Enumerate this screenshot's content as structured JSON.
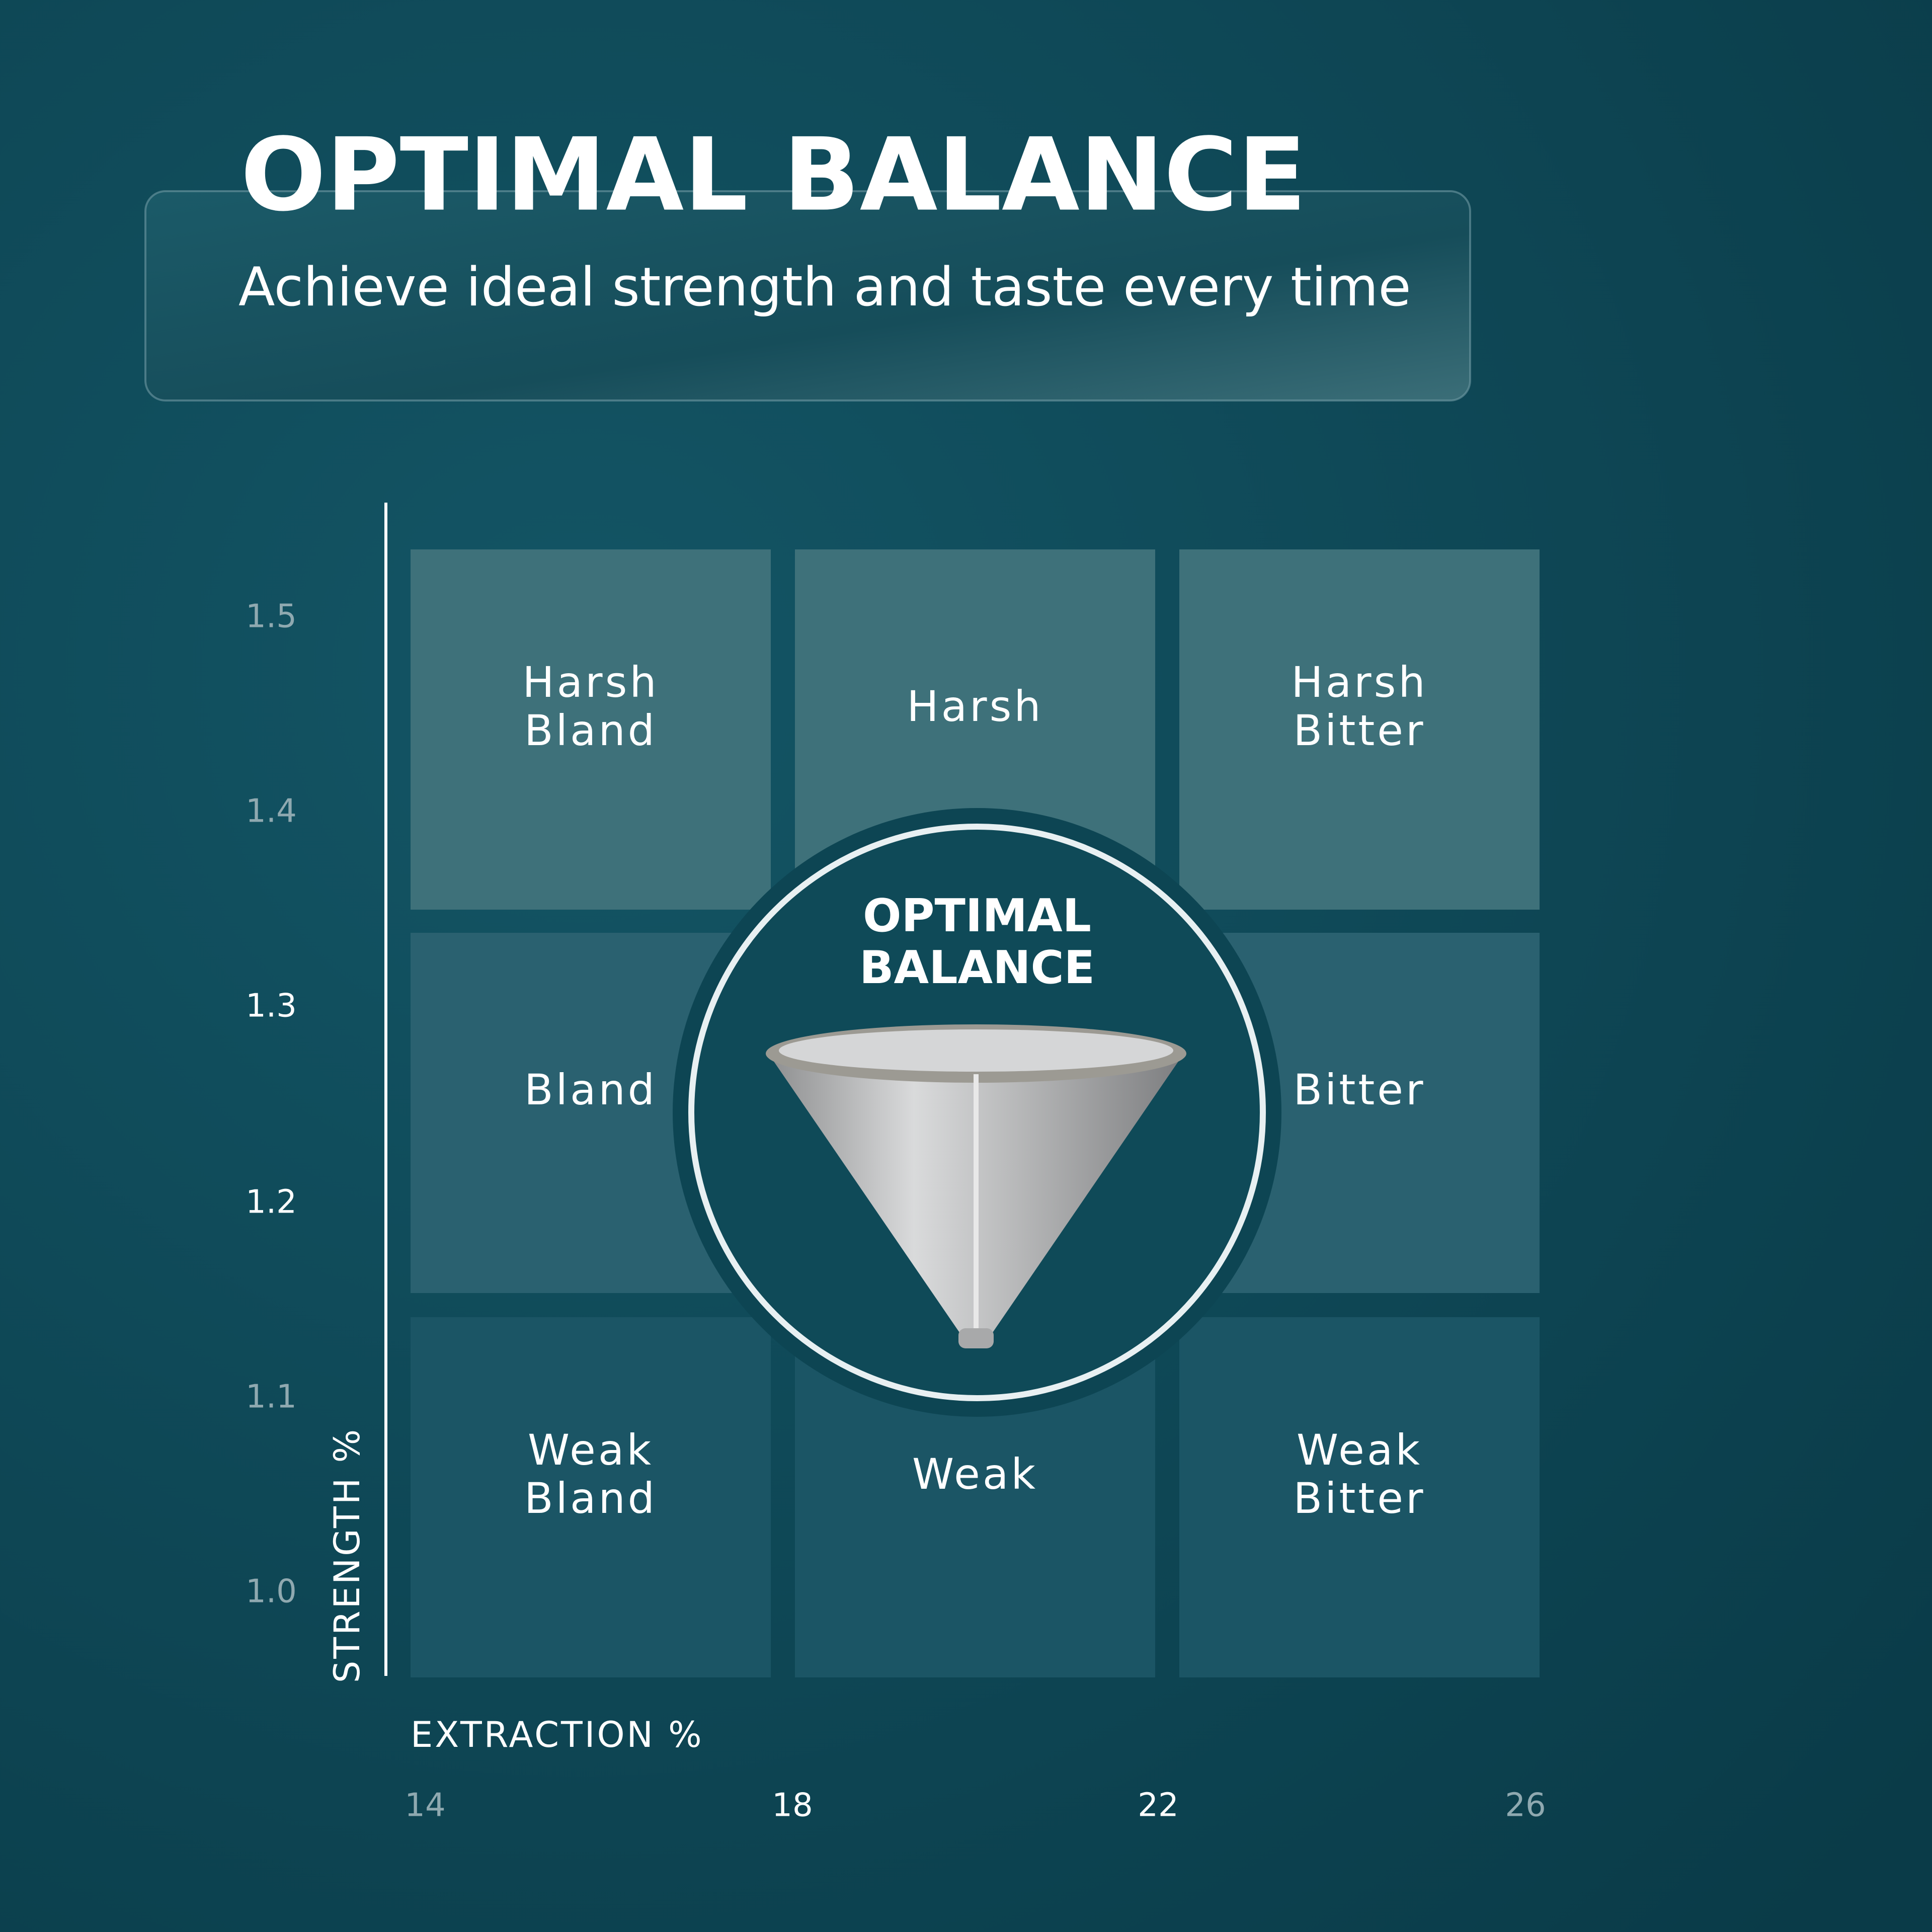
{
  "header": {
    "title": "OPTIMAL BALANCE",
    "subtitle": "Achieve ideal strength and taste every time"
  },
  "axes": {
    "y_label": "STRENGTH %",
    "y_ticks": [
      "1.5",
      "1.4",
      "1.3",
      "1.2",
      "1.1",
      "1.0"
    ],
    "x_label": "EXTRACTION %",
    "x_ticks": [
      "14",
      "18",
      "22",
      "26"
    ]
  },
  "grid": {
    "cells": [
      {
        "lines": [
          "Harsh",
          "Bland"
        ]
      },
      {
        "lines": [
          "Harsh"
        ]
      },
      {
        "lines": [
          "Harsh",
          "Bitter"
        ]
      },
      {
        "lines": [
          "Bland"
        ]
      },
      {
        "lines": []
      },
      {
        "lines": [
          "Bitter"
        ]
      },
      {
        "lines": [
          "Weak",
          "Bland"
        ]
      },
      {
        "lines": [
          "Weak"
        ]
      },
      {
        "lines": [
          "Weak",
          "Bitter"
        ]
      }
    ]
  },
  "badge": {
    "lines": [
      "OPTIMAL",
      "BALANCE"
    ]
  }
}
